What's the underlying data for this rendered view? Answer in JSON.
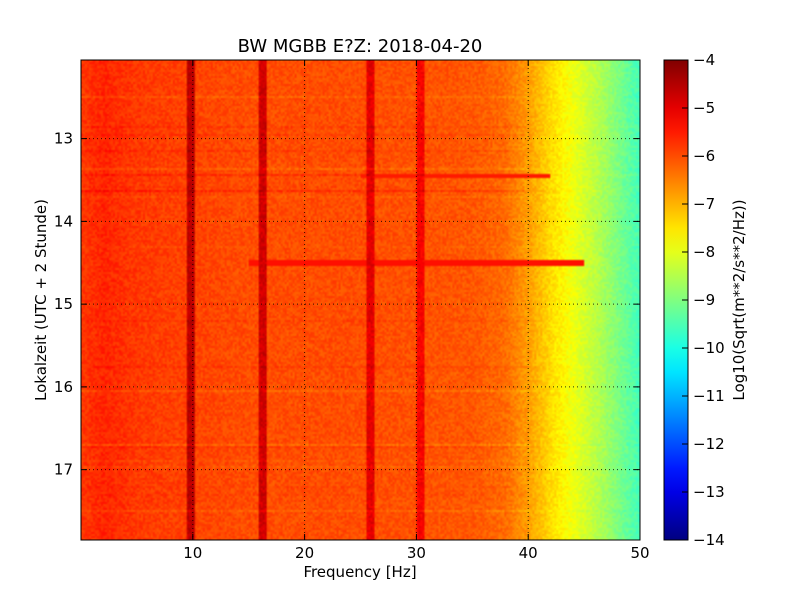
{
  "chart_data": {
    "type": "heatmap",
    "title": "BW MGBB E?Z: 2018-04-20",
    "xlabel": "Frequency [Hz]",
    "ylabel": "Lokalzeit (UTC + 2 Stunde)",
    "xlim": [
      0,
      50
    ],
    "ylim": [
      12.05,
      17.85
    ],
    "y_inverted": true,
    "x_ticks": [
      10,
      20,
      30,
      40,
      50
    ],
    "y_ticks": [
      13,
      14,
      15,
      16,
      17
    ],
    "grid": true,
    "grid_style": "dotted",
    "colormap": "jet",
    "colorbar": {
      "label": "Log10(Sqrt(m**2/s**2/Hz))",
      "range": [
        -14,
        -4
      ],
      "ticks": [
        -4,
        -5,
        -6,
        -7,
        -8,
        -9,
        -10,
        -11,
        -12,
        -13,
        -14
      ]
    },
    "spectral_profile": {
      "frequency_hz": [
        0,
        2,
        5,
        10,
        15,
        20,
        25,
        30,
        35,
        38,
        40,
        42,
        44,
        46,
        48,
        50
      ],
      "log10_amplitude": [
        -5.8,
        -5.6,
        -5.8,
        -5.9,
        -6.0,
        -6.0,
        -6.0,
        -6.05,
        -6.1,
        -6.3,
        -6.8,
        -7.4,
        -7.9,
        -8.4,
        -9.0,
        -9.6
      ]
    },
    "spectral_lines_hz": [
      {
        "frequency": 9.8,
        "log10_amplitude": -4.6
      },
      {
        "frequency": 16.3,
        "log10_amplitude": -4.8
      },
      {
        "frequency": 25.9,
        "log10_amplitude": -5.0
      },
      {
        "frequency": 30.3,
        "log10_amplitude": -5.2
      }
    ],
    "broadband_events_local_time": [
      {
        "time": 13.45,
        "from_hz": 25,
        "to_hz": 42,
        "log10_amplitude": -5.5
      },
      {
        "time": 14.5,
        "from_hz": 15,
        "to_hz": 45,
        "log10_amplitude": -5.4
      }
    ]
  }
}
